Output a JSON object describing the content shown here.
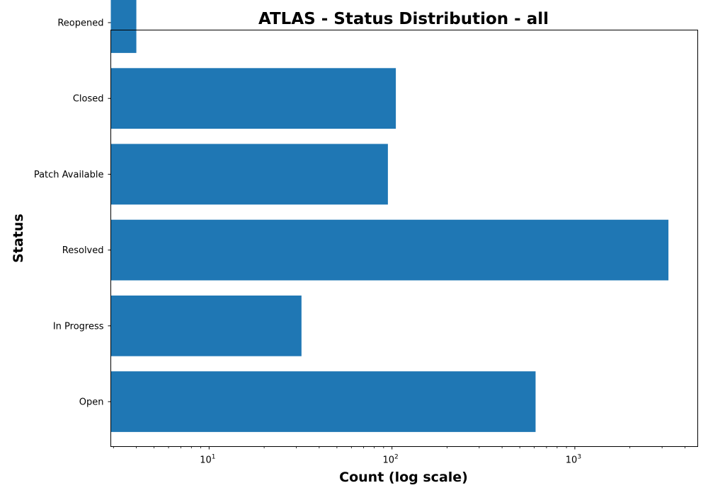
{
  "chart_data": {
    "type": "bar",
    "orientation": "horizontal",
    "title": "ATLAS - Status Distribution - all",
    "xlabel": "Count (log scale)",
    "ylabel": "Status",
    "x_scale": "log",
    "xlim": [
      2.9,
      4700
    ],
    "x_ticks": [
      {
        "base": "10",
        "exp": "1",
        "value": 10
      },
      {
        "base": "10",
        "exp": "2",
        "value": 100
      },
      {
        "base": "10",
        "exp": "3",
        "value": 1000
      }
    ],
    "categories": [
      "Open",
      "In Progress",
      "Resolved",
      "Patch Available",
      "Closed",
      "Reopened"
    ],
    "values": [
      610,
      32,
      3250,
      95,
      105,
      4
    ],
    "bar_color": "#1f77b4",
    "grid": false
  }
}
